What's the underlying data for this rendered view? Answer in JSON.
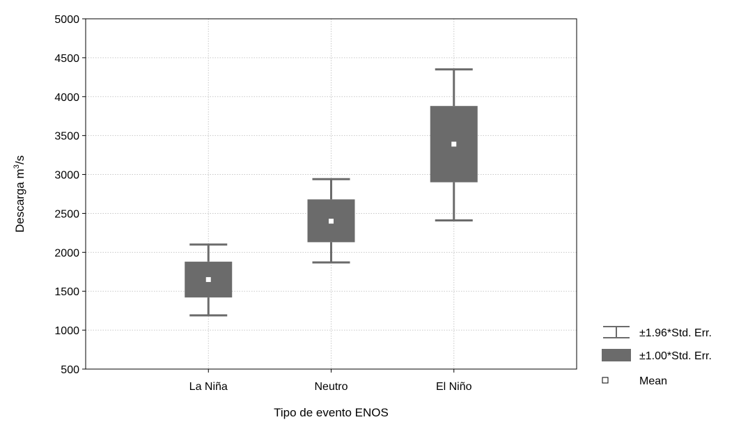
{
  "chart_data": {
    "type": "box",
    "categories": [
      "La Niña",
      "Neutro",
      "El Niño"
    ],
    "series": [
      {
        "mean": 1650,
        "se_low": 1420,
        "se_high": 1880,
        "ci_low": 1190,
        "ci_high": 2100
      },
      {
        "mean": 2400,
        "se_low": 2130,
        "se_high": 2680,
        "ci_low": 1870,
        "ci_high": 2940
      },
      {
        "mean": 3390,
        "se_low": 2900,
        "se_high": 3880,
        "ci_low": 2410,
        "ci_high": 4350
      }
    ],
    "xlabel": "Tipo de evento ENOS",
    "ylabel": "Descarga m³/s",
    "ylabel_parts": {
      "base": "Descarga m",
      "sup": "3",
      "rest": "/s"
    },
    "ylim": [
      500,
      5000
    ],
    "yticks": [
      500,
      1000,
      1500,
      2000,
      2500,
      3000,
      3500,
      4000,
      4500,
      5000
    ],
    "grid": true,
    "legend": {
      "position": "bottom-right",
      "entries": [
        {
          "kind": "whisker",
          "label": "±1.96*Std. Err."
        },
        {
          "kind": "box",
          "label": "±1.00*Std. Err."
        },
        {
          "kind": "mean",
          "label": "Mean"
        }
      ]
    },
    "colors": {
      "box": "#6b6b6b",
      "whisker": "#6b6b6b",
      "mean": "#ffffff",
      "grid": "#c8c8c8"
    }
  }
}
